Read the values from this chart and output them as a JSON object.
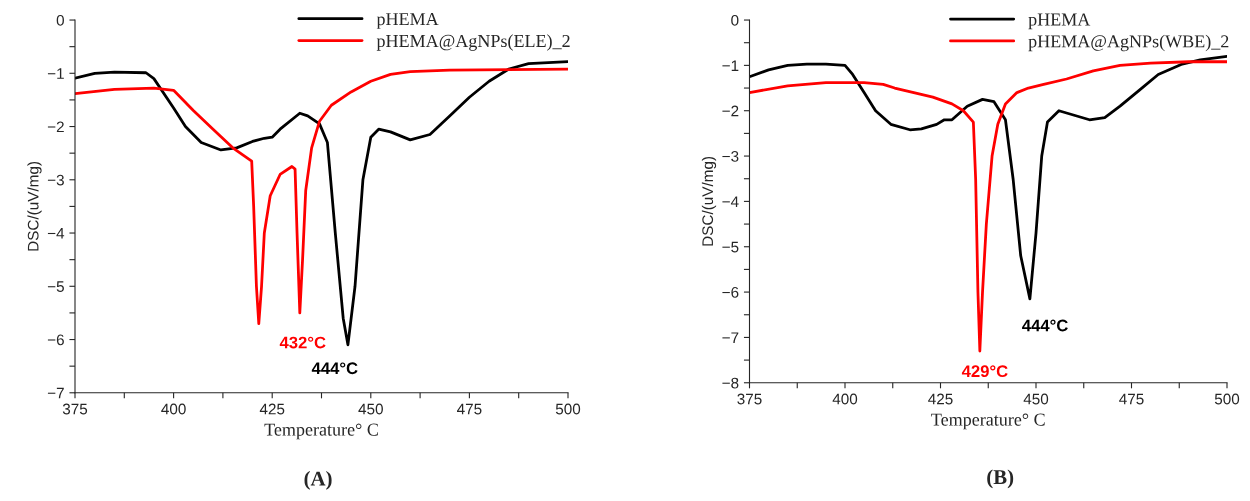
{
  "chart_data": [
    {
      "type": "line",
      "xlabel": "Temperature° C",
      "ylabel": "DSC/(uV/mg)",
      "xlim": [
        375,
        500
      ],
      "ylim": [
        -7,
        0
      ],
      "xticks": [
        375,
        {
          "value": 387.5,
          "label": null
        },
        400,
        {
          "value": 412.5,
          "label": null
        },
        425,
        {
          "value": 437.5,
          "label": null
        },
        450,
        {
          "value": 462.5,
          "label": null
        },
        475,
        {
          "value": 487.5,
          "label": null
        },
        500
      ],
      "yticks": [
        {
          "value": -7,
          "label": "−7"
        },
        {
          "value": -6.5,
          "label": null
        },
        {
          "value": -6,
          "label": "−6"
        },
        {
          "value": -5.5,
          "label": null
        },
        {
          "value": -5,
          "label": "−5"
        },
        {
          "value": -4.5,
          "label": null
        },
        {
          "value": -4,
          "label": "−4"
        },
        {
          "value": -3.5,
          "label": null
        },
        {
          "value": -3,
          "label": "−3"
        },
        {
          "value": -2.5,
          "label": null
        },
        {
          "value": -2,
          "label": "−2"
        },
        {
          "value": -1.5,
          "label": null
        },
        {
          "value": -1,
          "label": "−1"
        },
        {
          "value": -0.5,
          "label": null
        },
        0
      ],
      "grid": false,
      "legend": "top right",
      "marker": "none",
      "line_style": "solid",
      "series": [
        {
          "name": "pHEMA",
          "color": "#000000",
          "x": [
            375,
            380,
            385,
            393,
            395,
            400,
            403,
            407,
            412,
            416,
            420,
            423,
            425,
            427,
            432,
            434,
            437,
            439,
            441,
            443,
            444.2,
            446,
            448,
            450,
            452,
            455,
            460,
            465,
            470,
            475,
            480,
            485,
            490,
            500
          ],
          "values": [
            -1.09,
            -1.0,
            -0.98,
            -0.99,
            -1.1,
            -1.65,
            -2.0,
            -2.3,
            -2.44,
            -2.4,
            -2.28,
            -2.22,
            -2.2,
            -2.05,
            -1.75,
            -1.8,
            -1.95,
            -2.3,
            -4.0,
            -5.6,
            -6.1,
            -5.0,
            -3.0,
            -2.2,
            -2.05,
            -2.1,
            -2.25,
            -2.15,
            -1.8,
            -1.45,
            -1.15,
            -0.92,
            -0.82,
            -0.78
          ]
        },
        {
          "name": "pHEMA@AgNPs(ELE)_2",
          "color": "#ff0000",
          "x": [
            375,
            385,
            395,
            400,
            405,
            410,
            415,
            419.8,
            420.3,
            421,
            421.6,
            422.3,
            423,
            424.5,
            427,
            430,
            430.8,
            431.3,
            432,
            432.7,
            433.5,
            435,
            437,
            440,
            445,
            450,
            455,
            460,
            470,
            500
          ],
          "values": [
            -1.38,
            -1.3,
            -1.28,
            -1.32,
            -1.7,
            -2.05,
            -2.4,
            -2.65,
            -3.5,
            -5.0,
            -5.7,
            -5.0,
            -4.0,
            -3.3,
            -2.9,
            -2.75,
            -2.8,
            -4.0,
            -5.5,
            -4.5,
            -3.2,
            -2.4,
            -1.9,
            -1.6,
            -1.35,
            -1.15,
            -1.02,
            -0.97,
            -0.94,
            -0.92
          ]
        }
      ],
      "annotations": [
        "432°C",
        "444°C",
        "(A)"
      ]
    },
    {
      "type": "line",
      "xlabel": "Temperature° C",
      "ylabel": "DSC/(uV/mg)",
      "xlim": [
        375,
        500
      ],
      "ylim": [
        -8,
        0
      ],
      "xticks": [
        375,
        {
          "value": 387.5,
          "label": null
        },
        400,
        {
          "value": 412.5,
          "label": null
        },
        425,
        {
          "value": 437.5,
          "label": null
        },
        450,
        {
          "value": 462.5,
          "label": null
        },
        475,
        {
          "value": 487.5,
          "label": null
        },
        500
      ],
      "yticks": [
        {
          "value": -8,
          "label": "−8"
        },
        {
          "value": -7.5,
          "label": null
        },
        {
          "value": -7,
          "label": "−7"
        },
        {
          "value": -6.5,
          "label": null
        },
        {
          "value": -6,
          "label": "−6"
        },
        {
          "value": -5.5,
          "label": null
        },
        {
          "value": -5,
          "label": "−5"
        },
        {
          "value": -4.5,
          "label": null
        },
        {
          "value": -4,
          "label": "−4"
        },
        {
          "value": -3.5,
          "label": null
        },
        {
          "value": -3,
          "label": "−3"
        },
        {
          "value": -2.5,
          "label": null
        },
        {
          "value": -2,
          "label": "−2"
        },
        {
          "value": -1.5,
          "label": null
        },
        {
          "value": -1,
          "label": "−1"
        },
        {
          "value": -0.5,
          "label": null
        },
        0
      ],
      "grid": false,
      "legend": "top right",
      "marker": "none",
      "line_style": "solid",
      "series": [
        {
          "name": "pHEMA",
          "color": "#000000",
          "x": [
            375,
            380,
            385,
            390,
            395,
            400,
            402,
            405,
            408,
            412,
            417,
            420,
            424,
            426,
            428,
            432,
            436,
            439,
            442,
            444,
            446,
            448.4,
            450,
            451.5,
            453,
            456,
            460,
            464,
            468,
            472,
            477,
            482,
            488,
            493,
            500
          ],
          "values": [
            -1.25,
            -1.1,
            -1.0,
            -0.97,
            -0.97,
            -1.0,
            -1.2,
            -1.6,
            -2.0,
            -2.3,
            -2.42,
            -2.4,
            -2.3,
            -2.2,
            -2.2,
            -1.9,
            -1.75,
            -1.8,
            -2.2,
            -3.5,
            -5.2,
            -6.15,
            -4.7,
            -3.0,
            -2.25,
            -2.0,
            -2.1,
            -2.2,
            -2.15,
            -1.9,
            -1.55,
            -1.2,
            -0.98,
            -0.88,
            -0.8
          ]
        },
        {
          "name": "pHEMA@AgNPs(WBE)_2",
          "color": "#ff0000",
          "x": [
            375,
            385,
            395,
            405,
            410,
            413,
            418,
            423,
            428,
            431,
            433.6,
            434.2,
            434.8,
            435.3,
            436,
            437,
            438.5,
            440,
            442,
            445,
            448,
            452,
            458,
            465,
            472,
            480,
            490,
            500
          ],
          "values": [
            -1.6,
            -1.45,
            -1.38,
            -1.38,
            -1.42,
            -1.5,
            -1.6,
            -1.7,
            -1.85,
            -2.0,
            -2.25,
            -3.5,
            -6.0,
            -7.3,
            -6.0,
            -4.5,
            -3.0,
            -2.3,
            -1.85,
            -1.6,
            -1.5,
            -1.42,
            -1.3,
            -1.12,
            -1.0,
            -0.95,
            -0.92,
            -0.92
          ]
        }
      ],
      "annotations": [
        "429°C",
        "444°C",
        "(B)"
      ]
    }
  ]
}
